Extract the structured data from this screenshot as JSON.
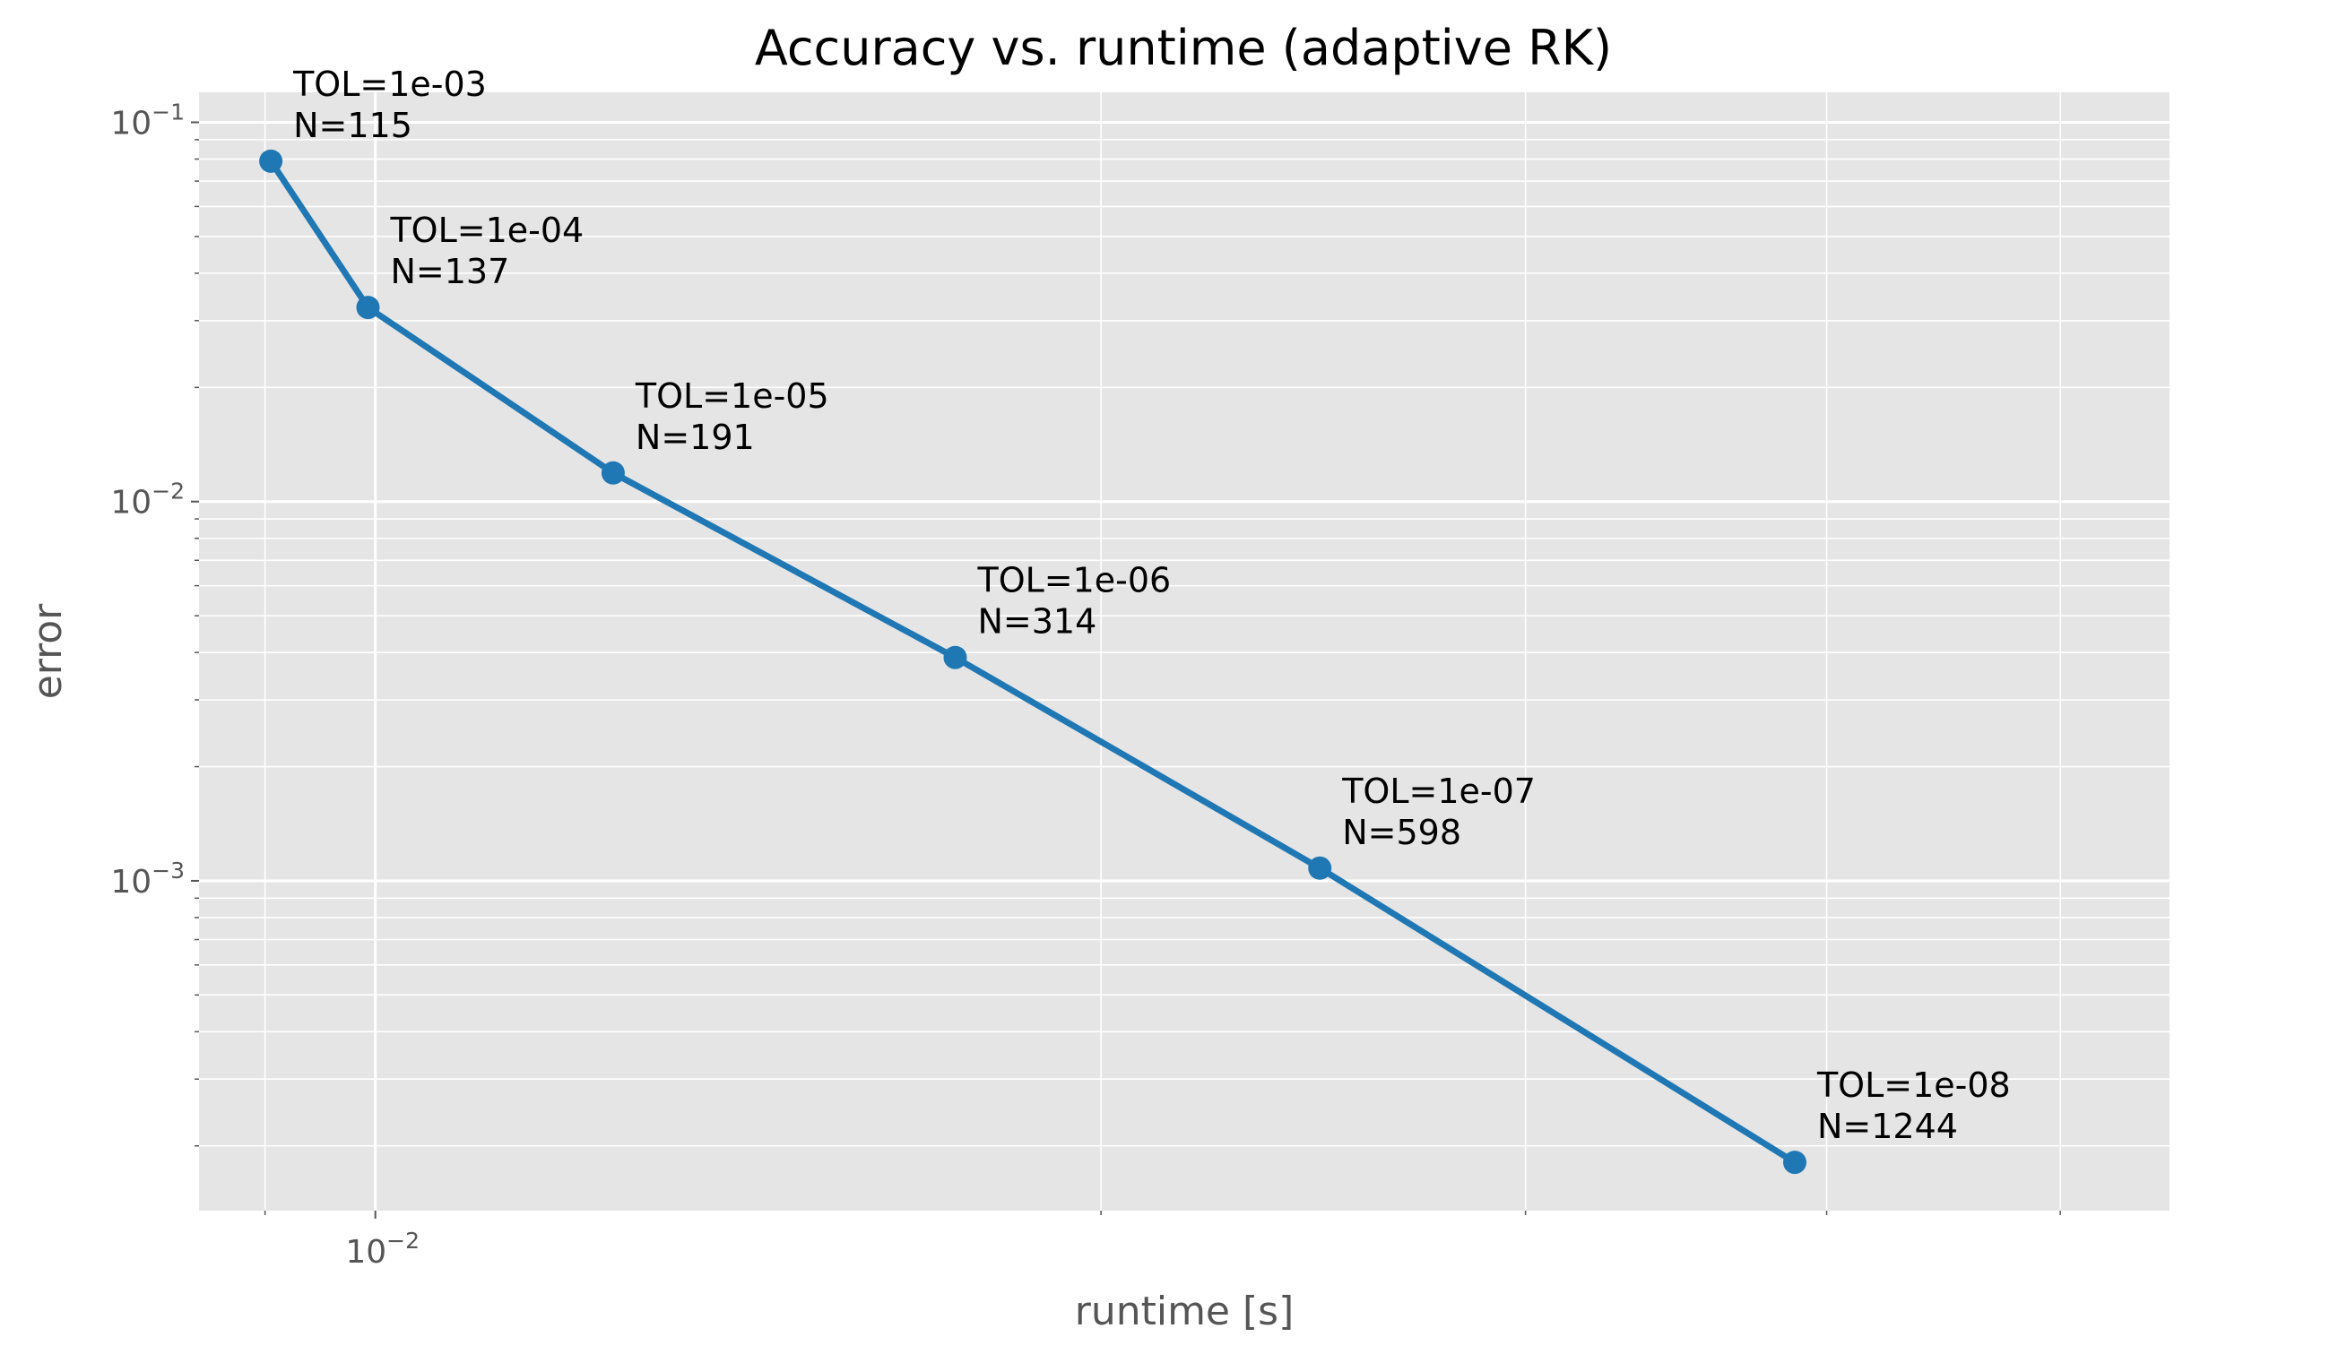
{
  "chart_data": {
    "type": "line",
    "title": "Accuracy vs. runtime (adaptive RK)",
    "xlabel": "runtime [s]",
    "ylabel": "error",
    "xscale": "log",
    "yscale": "log",
    "xlim": [
      0.00845,
      0.0555
    ],
    "ylim": [
      0.000135,
      0.12
    ],
    "grid": true,
    "style": "ggplot",
    "line_color": "#1f77b4",
    "x_major_ticks": [
      {
        "value": 0.01,
        "base": "10",
        "exp": "−2"
      }
    ],
    "y_major_ticks": [
      {
        "value": 0.1,
        "base": "10",
        "exp": "−1"
      },
      {
        "value": 0.01,
        "base": "10",
        "exp": "−2"
      },
      {
        "value": 0.001,
        "base": "10",
        "exp": "−3"
      }
    ],
    "series": [
      {
        "points": [
          {
            "x": 0.00905,
            "y": 0.079,
            "tol": "TOL=1e-03",
            "n": "N=115"
          },
          {
            "x": 0.00993,
            "y": 0.0325,
            "tol": "TOL=1e-04",
            "n": "N=137"
          },
          {
            "x": 0.01255,
            "y": 0.0119,
            "tol": "TOL=1e-05",
            "n": "N=191"
          },
          {
            "x": 0.0174,
            "y": 0.00388,
            "tol": "TOL=1e-06",
            "n": "N=314"
          },
          {
            "x": 0.02465,
            "y": 0.00108,
            "tol": "TOL=1e-07",
            "n": "N=598"
          },
          {
            "x": 0.0388,
            "y": 0.000181,
            "tol": "TOL=1e-08",
            "n": "N=1244"
          }
        ]
      }
    ]
  }
}
